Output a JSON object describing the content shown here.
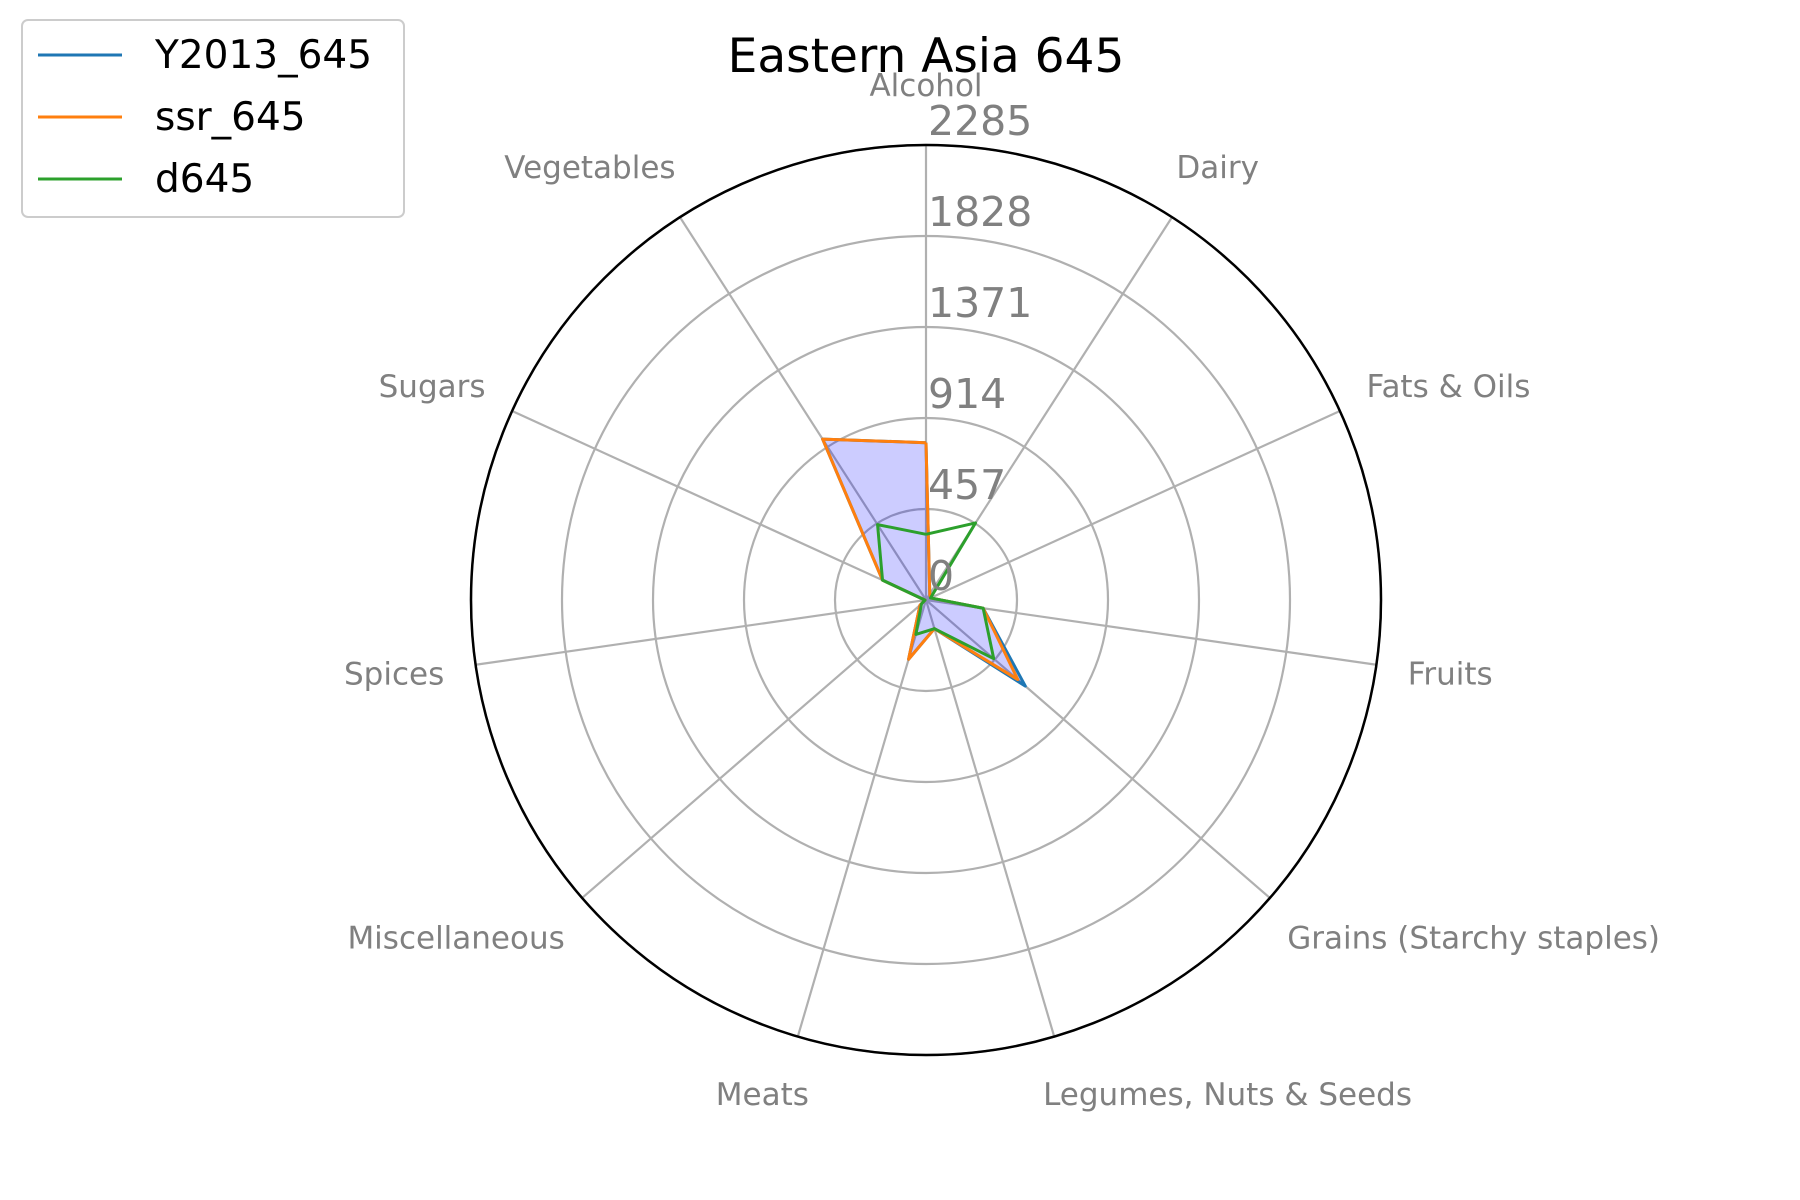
{
  "chart_data": {
    "type": "radar",
    "title": "Eastern Asia 645",
    "categories": [
      "Alcohol",
      "Dairy",
      "Fats & Oils",
      "Fruits",
      "Grains (Starchy staples)",
      "Legumes, Nuts & Seeds",
      "Meats",
      "Miscellaneous",
      "Spices",
      "Sugars",
      "Vegetables"
    ],
    "rlim": [
      0,
      2285
    ],
    "rticks": [
      "0",
      "457",
      "914",
      "1371",
      "1828",
      "2285"
    ],
    "rtick_values": [
      0,
      457,
      914,
      1371,
      1828,
      2285
    ],
    "grid": true,
    "legend_position": "top-left",
    "fill_color": "#0000ff",
    "series": [
      {
        "name": "Y2013_645",
        "color": "#1f77b4",
        "values": [
          790,
          35,
          25,
          290,
          660,
          150,
          310,
          40,
          5,
          240,
          960
        ]
      },
      {
        "name": "ssr_645",
        "color": "#ff7f0e",
        "values": [
          790,
          35,
          25,
          290,
          610,
          150,
          310,
          40,
          5,
          240,
          960
        ]
      },
      {
        "name": "d645",
        "color": "#2ca02c",
        "values": [
          330,
          460,
          25,
          290,
          450,
          150,
          180,
          30,
          5,
          240,
          450
        ]
      }
    ]
  }
}
